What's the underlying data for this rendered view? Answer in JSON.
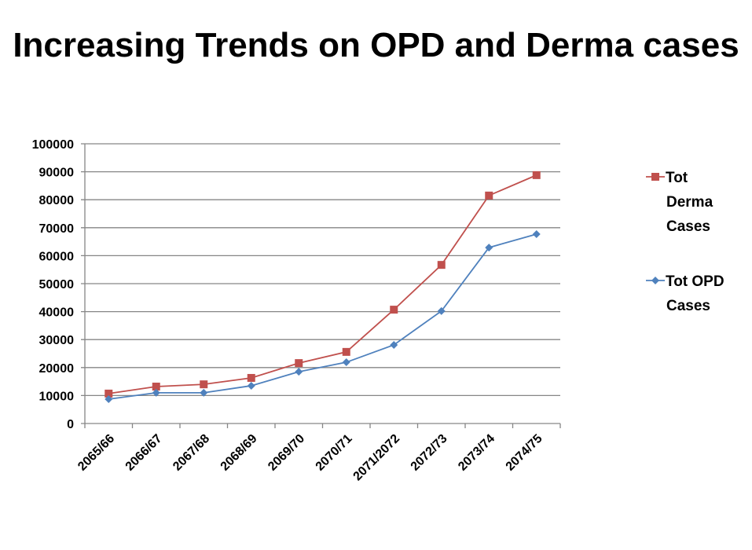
{
  "chart_data": {
    "type": "line",
    "title": "Increasing Trends on OPD and Derma cases",
    "xlabel": "",
    "ylabel": "",
    "categories": [
      "2065/66",
      "2066/67",
      "2067/68",
      "2068/69",
      "2069/70",
      "2070/71",
      "2071/2072",
      "2072/73",
      "2073/74",
      "2074/75"
    ],
    "yticks": [
      "0",
      "10000",
      "20000",
      "30000",
      "40000",
      "50000",
      "60000",
      "70000",
      "80000",
      "90000",
      "100000"
    ],
    "ylim": [
      0,
      100000
    ],
    "grid": true,
    "legend_position": "right",
    "series": [
      {
        "name": "Tot Derma Cases",
        "legend_lines": [
          "Tot",
          "Derma",
          "Cases"
        ],
        "color": "#C0504D",
        "marker": "square",
        "values": [
          10700,
          13200,
          14000,
          16300,
          21600,
          25600,
          40700,
          56700,
          81500,
          88800
        ]
      },
      {
        "name": "Tot OPD Cases",
        "legend_lines": [
          "Tot OPD",
          "Cases"
        ],
        "color": "#4F81BD",
        "marker": "diamond",
        "values": [
          8700,
          11000,
          11000,
          13500,
          18500,
          21900,
          28100,
          40200,
          62900,
          67700
        ]
      }
    ]
  }
}
